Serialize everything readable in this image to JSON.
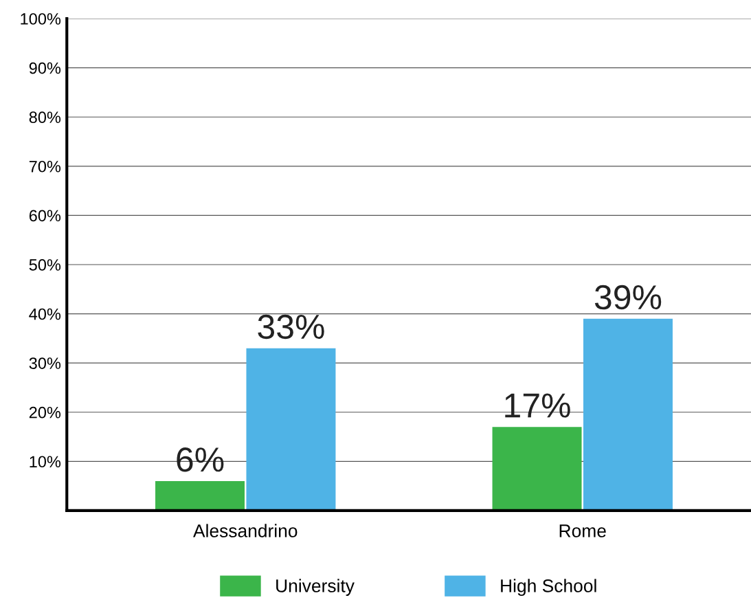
{
  "chart_data": {
    "type": "bar",
    "categories": [
      "Alessandrino",
      "Rome"
    ],
    "series": [
      {
        "name": "University",
        "color": "#3bb54a",
        "values": [
          6,
          17
        ],
        "value_labels": [
          "6%",
          "17%"
        ]
      },
      {
        "name": "High School",
        "color": "#4fb3e6",
        "values": [
          33,
          39
        ],
        "value_labels": [
          "33%",
          "39%"
        ]
      }
    ],
    "ylim": [
      0,
      100
    ],
    "yticks": [
      {
        "value": 10,
        "label": "10%"
      },
      {
        "value": 20,
        "label": "20%"
      },
      {
        "value": 30,
        "label": "30%"
      },
      {
        "value": 40,
        "label": "40%"
      },
      {
        "value": 50,
        "label": "50%"
      },
      {
        "value": 60,
        "label": "60%"
      },
      {
        "value": 70,
        "label": "70%"
      },
      {
        "value": 80,
        "label": "80%"
      },
      {
        "value": 90,
        "label": "90%"
      },
      {
        "value": 100,
        "label": "100%"
      }
    ],
    "grid": "y",
    "legend": "bottom"
  }
}
